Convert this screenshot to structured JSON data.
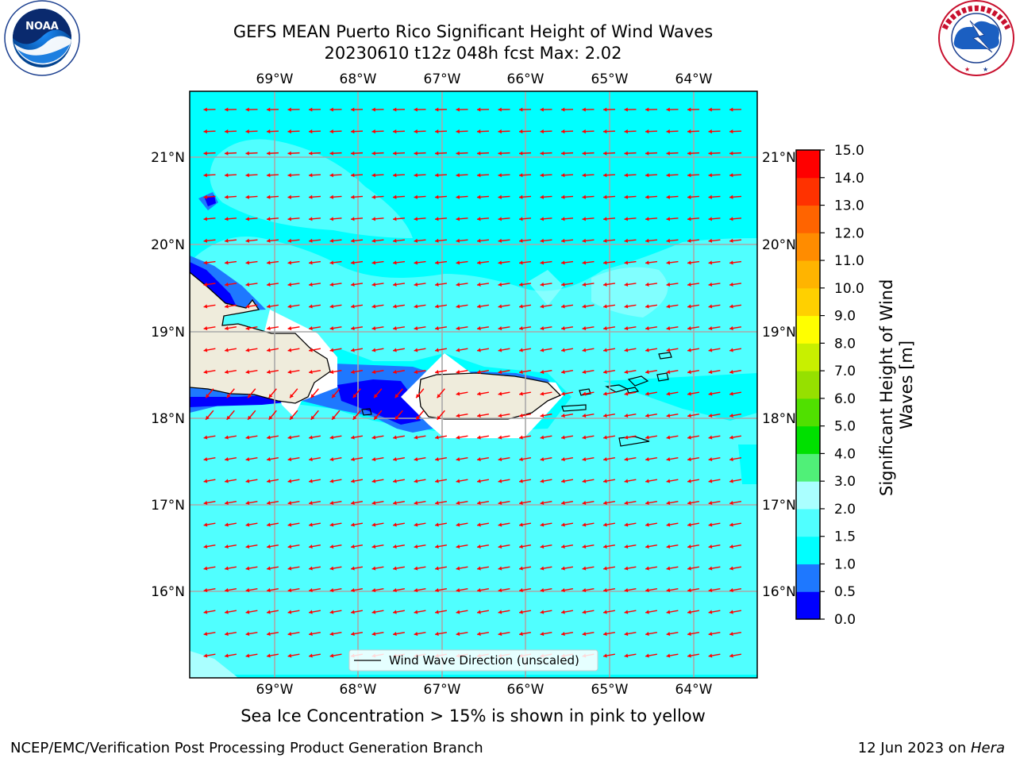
{
  "header": {
    "title_line1": "GEFS MEAN Puerto Rico Significant Height of Wind Waves",
    "title_line2": "20230610 t12z 048h fcst   Max: 2.02"
  },
  "logos": {
    "left": "NOAA",
    "left_ring_text": "NATIONAL OCEANIC AND ATMOSPHERIC ADMINISTRATION · U.S. DEPARTMENT OF COMMERCE",
    "right_ring_text": "NATIONAL WEATHER SERVICE"
  },
  "map": {
    "lon_labels": [
      "69°W",
      "68°W",
      "67°W",
      "66°W",
      "65°W",
      "64°W"
    ],
    "lat_labels": [
      "21°N",
      "20°N",
      "19°N",
      "18°N",
      "17°N",
      "16°N"
    ],
    "legend_label": "Wind Wave Direction (unscaled)",
    "arrow_color": "#ff0000",
    "land_color": "#efecdc"
  },
  "colorbar": {
    "label": "Significant Height of Wind Waves [m]",
    "ticks": [
      "0.0",
      "0.5",
      "1.0",
      "1.5",
      "2.0",
      "3.0",
      "4.0",
      "5.0",
      "6.0",
      "7.0",
      "8.0",
      "9.0",
      "10.0",
      "11.0",
      "12.0",
      "13.0",
      "14.0",
      "15.0"
    ],
    "colors": [
      "#0000ff",
      "#1e78ff",
      "#00ffff",
      "#50ffff",
      "#aaffff",
      "#50f078",
      "#00e000",
      "#50e000",
      "#96e000",
      "#c8f000",
      "#ffff00",
      "#ffd000",
      "#ffb400",
      "#ff8c00",
      "#ff6400",
      "#ff3200",
      "#ff0000"
    ]
  },
  "caption": "Sea Ice Concentration > 15% is shown in pink to yellow",
  "footer": {
    "left": "NCEP/EMC/Verification Post Processing Product Generation Branch",
    "right_prefix": "12 Jun 2023 on ",
    "right_host": "Hera"
  }
}
